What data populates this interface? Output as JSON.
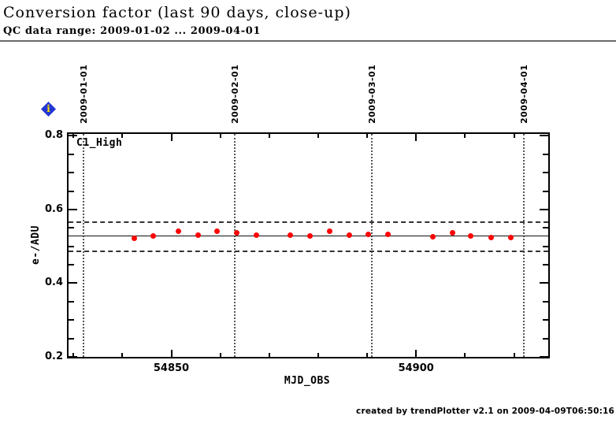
{
  "header": {
    "title": "Conversion factor (last 90 days, close-up)",
    "subtitle": "QC data range: 2009-01-02 ... 2009-04-01"
  },
  "icons": {
    "info_glyph": "i"
  },
  "colors": {
    "point": "#ff0000",
    "info_diamond": "#2236d4",
    "info_glyph": "#ffdf00",
    "frame": "#000000",
    "rule": "#6a6a6a"
  },
  "footer": {
    "credit": "created by trendPlotter v2.1 on 2009-04-09T06:50:16"
  },
  "chart_data": {
    "type": "scatter",
    "series_label": "C1_High",
    "xlabel": "MJD_OBS",
    "ylabel": "e-/ADU",
    "xlim": [
      54829,
      54927
    ],
    "ylim": [
      0.2,
      0.805
    ],
    "grid": "month-boundaries-dotted",
    "legend_position": "none",
    "x_major_ticks": [
      {
        "value": 54850,
        "label": "54850"
      },
      {
        "value": 54900,
        "label": "54900"
      }
    ],
    "x_minor_ticks": [
      54830,
      54840,
      54860,
      54870,
      54880,
      54890,
      54910,
      54920
    ],
    "y_major_ticks": [
      {
        "value": 0.8,
        "label": "0.8"
      },
      {
        "value": 0.6,
        "label": "0.6"
      },
      {
        "value": 0.4,
        "label": "0.4"
      },
      {
        "value": 0.2,
        "label": "0.2"
      }
    ],
    "y_minor_ticks": [
      0.25,
      0.3,
      0.35,
      0.45,
      0.5,
      0.55,
      0.65,
      0.7,
      0.75
    ],
    "date_marks": [
      {
        "label": "2009-01-01",
        "mjd": 54832
      },
      {
        "label": "2009-02-01",
        "mjd": 54863
      },
      {
        "label": "2009-03-01",
        "mjd": 54891
      },
      {
        "label": "2009-04-01",
        "mjd": 54922
      }
    ],
    "average_line": 0.528,
    "threshold_lines": [
      0.566,
      0.487
    ],
    "point_color": "#ff0000",
    "points": [
      [
        54842.4,
        0.521
      ],
      [
        54846.3,
        0.528
      ],
      [
        54851.4,
        0.54
      ],
      [
        54855.5,
        0.53
      ],
      [
        54859.3,
        0.542
      ],
      [
        54863.3,
        0.537
      ],
      [
        54867.3,
        0.531
      ],
      [
        54874.3,
        0.53
      ],
      [
        54878.3,
        0.528
      ],
      [
        54882.3,
        0.54
      ],
      [
        54886.4,
        0.53
      ],
      [
        54890.3,
        0.533
      ],
      [
        54894.2,
        0.533
      ],
      [
        54903.5,
        0.526
      ],
      [
        54907.4,
        0.537
      ],
      [
        54911.2,
        0.528
      ],
      [
        54915.3,
        0.523
      ],
      [
        54919.4,
        0.523
      ]
    ]
  }
}
